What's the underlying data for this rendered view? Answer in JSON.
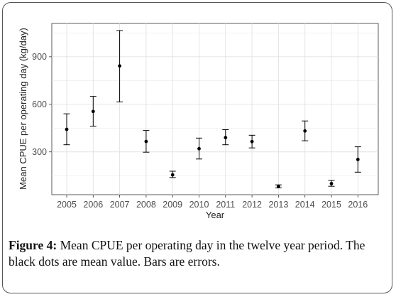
{
  "chart_data": {
    "type": "scatter",
    "x": [
      "2005",
      "2006",
      "2007",
      "2008",
      "2009",
      "2010",
      "2011",
      "2012",
      "2013",
      "2014",
      "2015",
      "2016"
    ],
    "values": [
      442,
      555,
      842,
      366,
      155,
      320,
      390,
      365,
      82,
      432,
      100,
      252
    ],
    "error_low": [
      345,
      462,
      615,
      298,
      138,
      255,
      345,
      325,
      73,
      370,
      83,
      172
    ],
    "error_high": [
      540,
      650,
      1065,
      435,
      178,
      387,
      440,
      405,
      92,
      495,
      120,
      332
    ],
    "xlabel": "Year",
    "ylabel": "Mean CPUE per operating day (kg/day)",
    "yticks": [
      300,
      600,
      900
    ],
    "ylim": [
      30,
      1110
    ],
    "grid": true,
    "point_color": "#000000",
    "errorbar_color": "#000000",
    "grid_color": "#ebebeb"
  },
  "caption": {
    "label": "Figure 4:",
    "text": " Mean CPUE per operating day in the twelve year period. The black dots are mean value. Bars are errors."
  }
}
